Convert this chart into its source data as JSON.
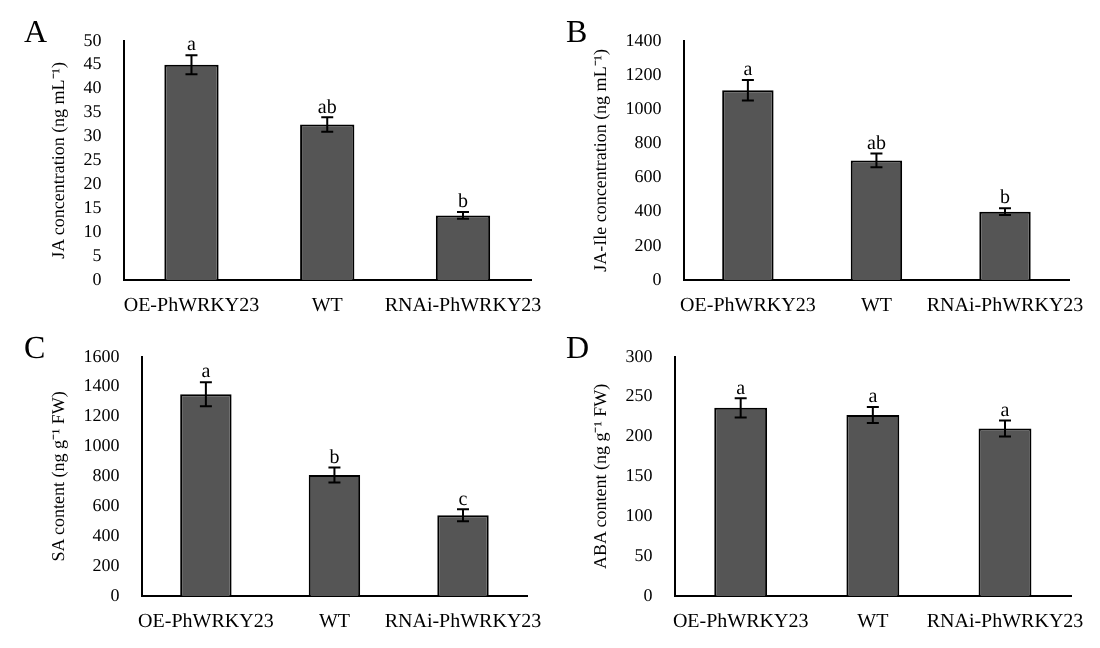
{
  "chart_data": [
    {
      "type": "bar",
      "title": "A",
      "ylabel": "JA concentration (ng mL⁻¹)",
      "categories": [
        "OE-PhWRKY23",
        "WT",
        "RNAi-PhWRKY23"
      ],
      "color": "#555555",
      "values": [
        45,
        32.5,
        13.5
      ],
      "errors": [
        2,
        1.5,
        0.7
      ],
      "ylim": [
        0,
        50
      ],
      "yticks": [
        0,
        5,
        10,
        15,
        20,
        25,
        30,
        35,
        40,
        45,
        50
      ],
      "grid": false,
      "legend": false,
      "annotations": [
        {
          "text": "a",
          "x": "OE-PhWRKY23",
          "y": 47
        },
        {
          "text": "ab",
          "x": "WT",
          "y": 34
        },
        {
          "text": "b",
          "x": "RNAi-PhWRKY23",
          "y": 14.2
        }
      ]
    },
    {
      "type": "bar",
      "title": "B",
      "ylabel": "JA-Ile concentration (ng mL⁻¹)",
      "categories": [
        "OE-PhWRKY23",
        "WT",
        "RNAi-PhWRKY23"
      ],
      "color": "#555555",
      "values": [
        1110,
        700,
        400
      ],
      "errors": [
        60,
        40,
        20
      ],
      "ylim": [
        0,
        1400
      ],
      "yticks": [
        0,
        200,
        400,
        600,
        800,
        1000,
        1200,
        1400
      ],
      "grid": false,
      "legend": false,
      "annotations": [
        {
          "text": "a",
          "x": "OE-PhWRKY23",
          "y": 1170
        },
        {
          "text": "ab",
          "x": "WT",
          "y": 740
        },
        {
          "text": "b",
          "x": "RNAi-PhWRKY23",
          "y": 420
        }
      ]
    },
    {
      "type": "bar",
      "title": "C",
      "ylabel": "SA content (ng g⁻¹ FW)",
      "categories": [
        "OE-PhWRKY23",
        "WT",
        "RNAi-PhWRKY23"
      ],
      "color": "#555555",
      "values": [
        1350,
        810,
        540
      ],
      "errors": [
        80,
        50,
        40
      ],
      "ylim": [
        0,
        1600
      ],
      "yticks": [
        0,
        200,
        400,
        600,
        800,
        1000,
        1200,
        1400,
        1600
      ],
      "grid": false,
      "legend": false,
      "annotations": [
        {
          "text": "a",
          "x": "OE-PhWRKY23",
          "y": 1430
        },
        {
          "text": "b",
          "x": "WT",
          "y": 860
        },
        {
          "text": "c",
          "x": "RNAi-PhWRKY23",
          "y": 580
        }
      ]
    },
    {
      "type": "bar",
      "title": "D",
      "ylabel": "ABA content (ng g⁻¹ FW)",
      "categories": [
        "OE-PhWRKY23",
        "WT",
        "RNAi-PhWRKY23"
      ],
      "color": "#555555",
      "values": [
        236,
        227,
        210
      ],
      "errors": [
        12,
        10,
        10
      ],
      "ylim": [
        0,
        300
      ],
      "yticks": [
        0,
        50,
        100,
        150,
        200,
        250,
        300
      ],
      "grid": false,
      "legend": false,
      "annotations": [
        {
          "text": "a",
          "x": "OE-PhWRKY23",
          "y": 248
        },
        {
          "text": "a",
          "x": "WT",
          "y": 237
        },
        {
          "text": "a",
          "x": "RNAi-PhWRKY23",
          "y": 220
        }
      ]
    }
  ]
}
